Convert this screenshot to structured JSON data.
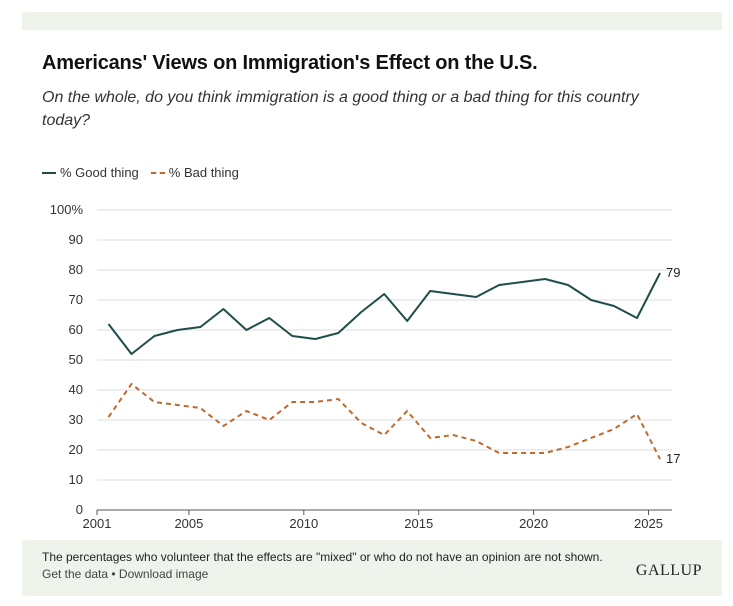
{
  "title": "Americans' Views on Immigration's Effect on the U.S.",
  "subtitle": "On the whole, do you think immigration is a good thing or a bad thing for this country today?",
  "legend": {
    "good": "% Good thing",
    "bad": "% Bad thing"
  },
  "note": "The percentages who volunteer that the effects are \"mixed\" or who do not have an opinion are not shown.",
  "footer": {
    "get_data": "Get the data",
    "separator": " • ",
    "download": "Download image"
  },
  "brand": "GALLUP",
  "colors": {
    "good": "#1f4e4a",
    "bad": "#c0692e",
    "grid": "#dddddd"
  },
  "chart_data": {
    "type": "line",
    "title": "Americans' Views on Immigration's Effect on the U.S.",
    "xlabel": "",
    "ylabel": "",
    "xlim": [
      2001,
      2025.5
    ],
    "ylim": [
      0,
      100
    ],
    "x_ticks": [
      2001,
      2005,
      2010,
      2015,
      2020,
      2025
    ],
    "y_ticks": [
      0,
      10,
      20,
      30,
      40,
      50,
      60,
      70,
      80,
      90,
      100
    ],
    "y_tick_labels": [
      "0",
      "10",
      "20",
      "30",
      "40",
      "50",
      "60",
      "70",
      "80",
      "90",
      "100%"
    ],
    "series": [
      {
        "name": "% Good thing",
        "style": "solid",
        "end_label": "79",
        "points": [
          [
            2001.5,
            62
          ],
          [
            2002.5,
            52
          ],
          [
            2003.5,
            58
          ],
          [
            2004.5,
            60
          ],
          [
            2005.5,
            61
          ],
          [
            2006.5,
            67
          ],
          [
            2007.5,
            60
          ],
          [
            2008.5,
            64
          ],
          [
            2009.5,
            58
          ],
          [
            2010.5,
            57
          ],
          [
            2011.5,
            59
          ],
          [
            2012.5,
            66
          ],
          [
            2013.5,
            72
          ],
          [
            2014.5,
            63
          ],
          [
            2015.5,
            73
          ],
          [
            2017.5,
            71
          ],
          [
            2018.5,
            75
          ],
          [
            2020.5,
            77
          ],
          [
            2021.5,
            75
          ],
          [
            2022.5,
            70
          ],
          [
            2023.5,
            68
          ],
          [
            2024.5,
            64
          ],
          [
            2025.5,
            79
          ]
        ]
      },
      {
        "name": "% Bad thing",
        "style": "dashed",
        "end_label": "17",
        "points": [
          [
            2001.5,
            31
          ],
          [
            2002.5,
            42
          ],
          [
            2003.5,
            36
          ],
          [
            2004.5,
            35
          ],
          [
            2005.5,
            34
          ],
          [
            2006.5,
            28
          ],
          [
            2007.5,
            33
          ],
          [
            2008.5,
            30
          ],
          [
            2009.5,
            36
          ],
          [
            2010.5,
            36
          ],
          [
            2011.5,
            37
          ],
          [
            2012.5,
            29
          ],
          [
            2013.5,
            25
          ],
          [
            2014.5,
            33
          ],
          [
            2015.5,
            24
          ],
          [
            2016.5,
            25
          ],
          [
            2017.5,
            23
          ],
          [
            2018.5,
            19
          ],
          [
            2020.5,
            19
          ],
          [
            2021.5,
            21
          ],
          [
            2022.5,
            24
          ],
          [
            2023.5,
            27
          ],
          [
            2024.5,
            32
          ],
          [
            2025.5,
            17
          ]
        ]
      }
    ]
  }
}
